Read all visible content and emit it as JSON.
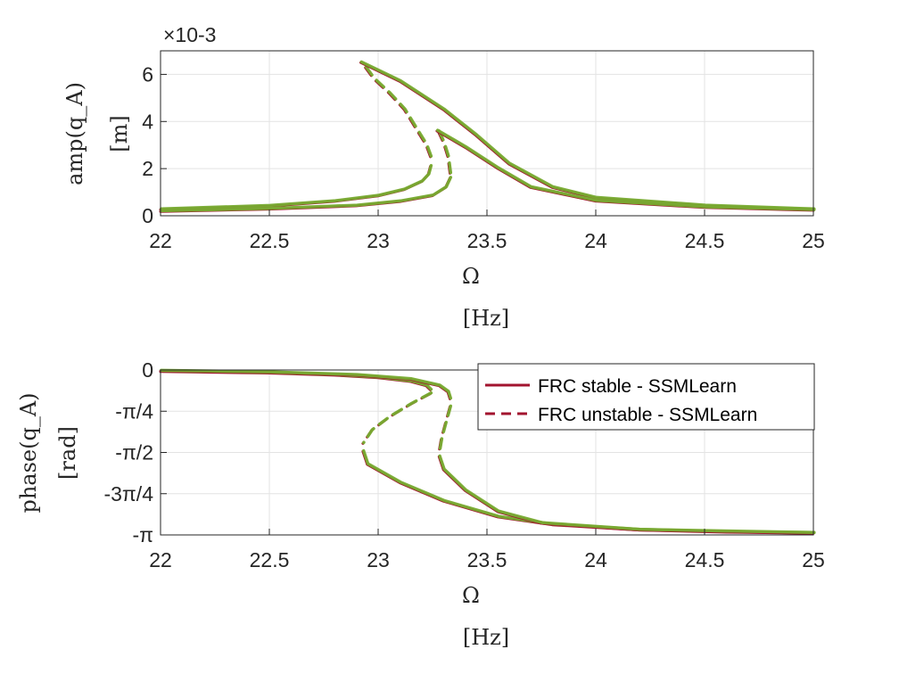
{
  "chart_data": [
    {
      "type": "line",
      "ylabel": "amp(q_A)",
      "ylabel_unit": "[m]",
      "xlabel": "Ω",
      "xlabel_unit": "[Hz]",
      "y_exponent": "×10-3",
      "xlim": [
        22,
        25
      ],
      "ylim": [
        0,
        0.007
      ],
      "x_ticks": [
        22,
        22.5,
        23,
        23.5,
        24,
        24.5,
        25
      ],
      "x_tick_labels": [
        "22",
        "22.5",
        "23",
        "23.5",
        "24",
        "24.5",
        "25"
      ],
      "y_ticks": [
        0,
        0.002,
        0.004,
        0.006
      ],
      "y_tick_labels": [
        "0",
        "2",
        "4",
        "6"
      ],
      "grid": true,
      "series": [
        {
          "color": "#a2142f",
          "style": "solid",
          "stable": true,
          "x": [
            22,
            22.5,
            22.8,
            23,
            23.12,
            23.2,
            23.23,
            23.24
          ],
          "y": [
            0.00026,
            0.00041,
            0.00061,
            0.00084,
            0.00111,
            0.00145,
            0.00175,
            0.0021
          ]
        },
        {
          "color": "#a2142f",
          "style": "dashed",
          "stable": false,
          "x": [
            23.24,
            23.22,
            23.18,
            23.12,
            23.05,
            22.98,
            22.94
          ],
          "y": [
            0.0025,
            0.003,
            0.0036,
            0.0045,
            0.0052,
            0.0058,
            0.0063
          ]
        },
        {
          "color": "#a2142f",
          "style": "solid",
          "stable": true,
          "x": [
            22.92,
            23.1,
            23.3,
            23.45,
            23.6,
            23.8,
            24,
            24.5,
            25
          ],
          "y": [
            0.0065,
            0.0057,
            0.0045,
            0.0034,
            0.0022,
            0.0012,
            0.00075,
            0.00042,
            0.00026
          ]
        },
        {
          "color": "#a2142f",
          "style": "solid",
          "stable": true,
          "x": [
            22,
            22.5,
            22.9,
            23.1,
            23.25,
            23.31,
            23.33
          ],
          "y": [
            0.00018,
            0.00028,
            0.00042,
            0.0006,
            0.00085,
            0.0012,
            0.0016
          ]
        },
        {
          "color": "#a2142f",
          "style": "dashed",
          "stable": false,
          "x": [
            23.33,
            23.32,
            23.3,
            23.28,
            23.27
          ],
          "y": [
            0.0018,
            0.0025,
            0.0031,
            0.0035,
            0.0037
          ]
        },
        {
          "color": "#a2142f",
          "style": "solid",
          "stable": true,
          "x": [
            23.27,
            23.4,
            23.55,
            23.7,
            24,
            24.5,
            25
          ],
          "y": [
            0.0036,
            0.0029,
            0.002,
            0.0012,
            0.00062,
            0.00035,
            0.00023
          ]
        }
      ]
    },
    {
      "type": "line",
      "ylabel": "phase(q_A)",
      "ylabel_unit": "[rad]",
      "xlabel": "Ω",
      "xlabel_unit": "[Hz]",
      "xlim": [
        22,
        25
      ],
      "ylim": [
        -3.14159,
        0
      ],
      "x_ticks": [
        22,
        22.5,
        23,
        23.5,
        24,
        24.5,
        25
      ],
      "x_tick_labels": [
        "22",
        "22.5",
        "23",
        "23.5",
        "24",
        "24.5",
        "25"
      ],
      "y_ticks": [
        0,
        -0.7854,
        -1.5708,
        -2.3562,
        -3.14159
      ],
      "y_tick_labels": [
        "0",
        "-π/4",
        "-π/2",
        "-3π/4",
        "-π"
      ],
      "grid": true,
      "legend": {
        "position": "top-right",
        "entries": [
          "FRC stable - SSMLearn",
          "FRC unstable - SSMLearn"
        ]
      },
      "series": [
        {
          "name": "FRC stable - SSMLearn",
          "color": "#a2142f",
          "style": "solid",
          "stable": true,
          "x": [
            22,
            22.5,
            22.8,
            23,
            23.15,
            23.22,
            23.24
          ],
          "y": [
            -0.03,
            -0.06,
            -0.1,
            -0.15,
            -0.22,
            -0.3,
            -0.38
          ]
        },
        {
          "name": "FRC unstable - SSMLearn",
          "color": "#a2142f",
          "style": "dashed",
          "stable": false,
          "x": [
            23.24,
            23.15,
            23.05,
            22.97,
            22.93
          ],
          "y": [
            -0.45,
            -0.65,
            -0.9,
            -1.15,
            -1.4
          ]
        },
        {
          "color": "#a2142f",
          "style": "solid",
          "stable": true,
          "x": [
            22.93,
            22.95,
            23.1,
            23.3,
            23.55,
            23.8,
            24.2,
            24.6,
            25
          ],
          "y": [
            -1.55,
            -1.8,
            -2.15,
            -2.5,
            -2.8,
            -2.95,
            -3.05,
            -3.09,
            -3.11
          ]
        },
        {
          "color": "#a2142f",
          "style": "solid",
          "stable": true,
          "x": [
            22,
            22.5,
            22.9,
            23.15,
            23.28,
            23.32,
            23.33
          ],
          "y": [
            -0.02,
            -0.05,
            -0.1,
            -0.18,
            -0.3,
            -0.42,
            -0.55
          ]
        },
        {
          "color": "#a2142f",
          "style": "dashed",
          "stable": false,
          "x": [
            23.33,
            23.31,
            23.29,
            23.28
          ],
          "y": [
            -0.7,
            -1.0,
            -1.3,
            -1.55
          ]
        },
        {
          "color": "#a2142f",
          "style": "solid",
          "stable": true,
          "x": [
            23.28,
            23.3,
            23.4,
            23.55,
            23.75,
            24.2,
            25
          ],
          "y": [
            -1.65,
            -1.9,
            -2.3,
            -2.7,
            -2.92,
            -3.05,
            -3.11
          ]
        }
      ]
    }
  ]
}
